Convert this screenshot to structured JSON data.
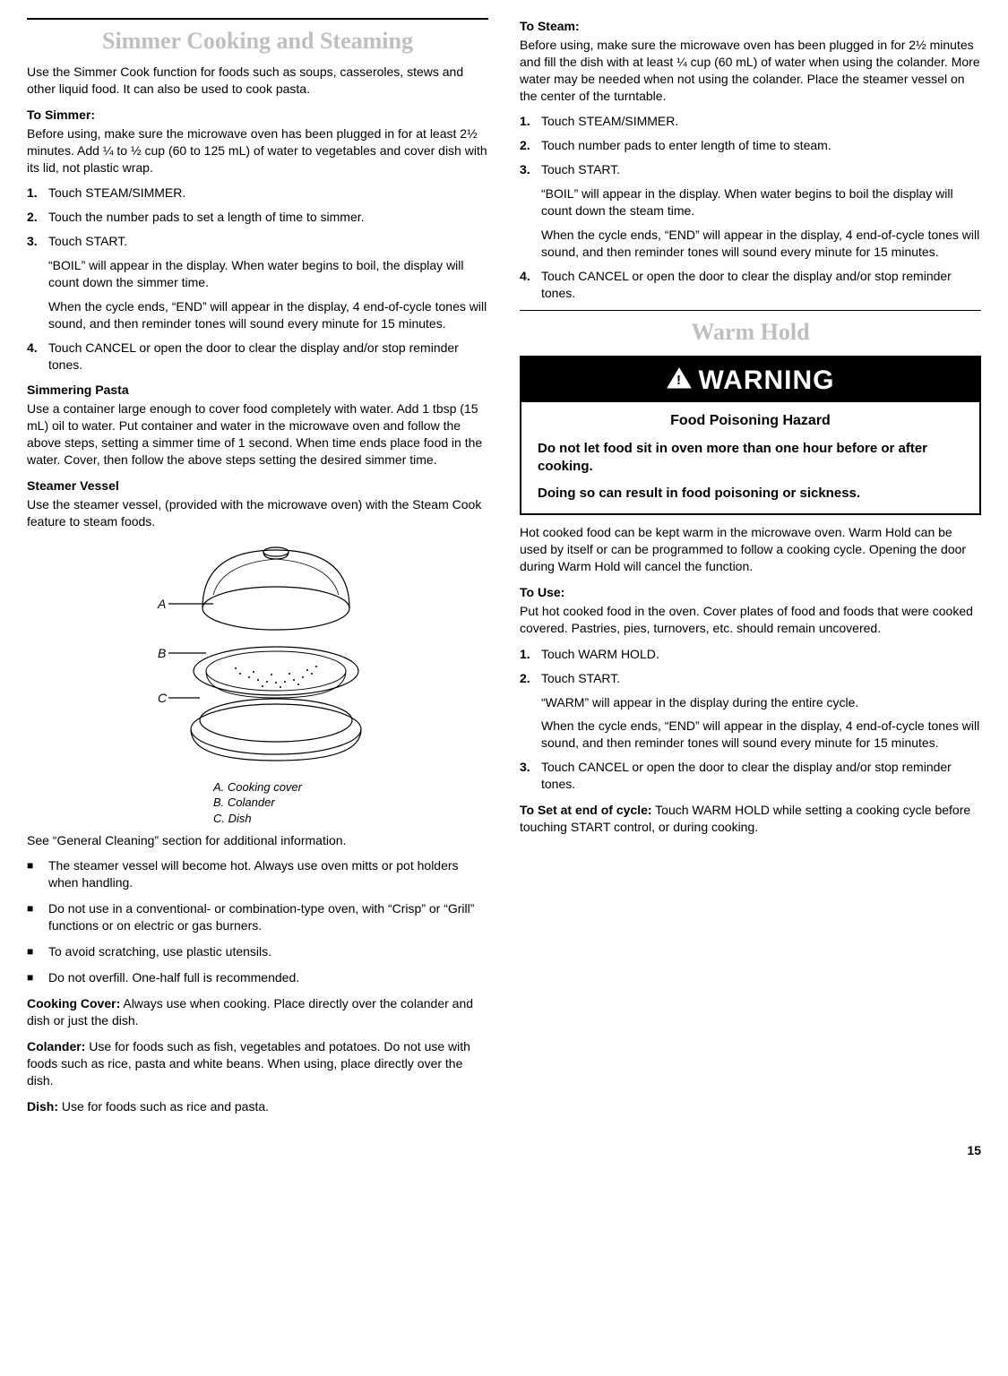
{
  "left": {
    "title": "Simmer Cooking and Steaming",
    "intro": "Use the Simmer Cook function for foods such as soups, casseroles, stews and other liquid food. It can also be used to cook pasta.",
    "toSimmer": {
      "head": "To Simmer:",
      "pre": "Before using, make sure the microwave oven has been plugged in for at least 2½ minutes. Add ¼ to ½ cup (60 to 125 mL) of water to vegetables and cover dish with its lid, not plastic wrap.",
      "steps": [
        {
          "n": "1.",
          "paras": [
            "Touch STEAM/SIMMER."
          ]
        },
        {
          "n": "2.",
          "paras": [
            "Touch the number pads to set a length of time to simmer."
          ]
        },
        {
          "n": "3.",
          "paras": [
            "Touch START.",
            "“BOIL” will appear in the display. When water begins to boil, the display will count down the simmer time.",
            "When the cycle ends, “END” will appear in the display, 4 end-of-cycle tones will sound, and then reminder tones will sound every minute for 15 minutes."
          ]
        },
        {
          "n": "4.",
          "paras": [
            "Touch CANCEL or open the door to clear the display and/or stop reminder tones."
          ]
        }
      ]
    },
    "pasta": {
      "head": "Simmering Pasta",
      "body": "Use a container large enough to cover food completely with water. Add 1 tbsp (15 mL) oil to water. Put container and water in the microwave oven and follow the above steps, setting a simmer time of 1 second. When time ends place food in the water. Cover, then follow the above steps setting the desired simmer time."
    },
    "vessel": {
      "head": "Steamer Vessel",
      "intro": "Use the steamer vessel, (provided with the microwave oven) with the Steam Cook feature to steam foods.",
      "labels": {
        "a": "A",
        "b": "B",
        "c": "C"
      },
      "legend": [
        "A. Cooking cover",
        "B. Colander",
        "C. Dish"
      ],
      "after": "See “General Cleaning” section for additional information.",
      "bullets": [
        "The steamer vessel will become hot. Always use oven mitts or pot holders when handling.",
        "Do not use in a conventional- or combination-type oven, with “Crisp” or “Grill” functions or on electric or gas burners.",
        "To avoid scratching, use plastic utensils.",
        "Do not overfill. One-half full is recommended."
      ],
      "cover": {
        "label": "Cooking Cover:",
        "text": " Always use when cooking. Place directly over the colander and dish or just the dish."
      },
      "colander": {
        "label": "Colander:",
        "text": " Use for foods such as fish, vegetables and potatoes. Do not use with foods such as rice, pasta and white beans. When using, place directly over the dish."
      },
      "dish": {
        "label": "Dish:",
        "text": " Use for foods such as rice and pasta."
      }
    }
  },
  "right": {
    "toSteam": {
      "head": "To Steam:",
      "pre": "Before using, make sure the microwave oven has been plugged in for 2½ minutes and fill the dish with at least ¼ cup (60 mL) of water when using the colander. More water may be needed when not using the colander. Place the steamer vessel on the center of the turntable.",
      "steps": [
        {
          "n": "1.",
          "paras": [
            "Touch STEAM/SIMMER."
          ]
        },
        {
          "n": "2.",
          "paras": [
            "Touch number pads to enter length of time to steam."
          ]
        },
        {
          "n": "3.",
          "paras": [
            "Touch START.",
            "“BOIL” will appear in the display. When water begins to boil the display will count down the steam time.",
            "When the cycle ends, “END” will appear in the display, 4 end-of-cycle tones will sound, and then reminder tones will sound every minute for 15 minutes."
          ]
        },
        {
          "n": "4.",
          "paras": [
            "Touch CANCEL or open the door to clear the display and/or stop reminder tones."
          ]
        }
      ]
    },
    "warmHold": {
      "title": "Warm Hold",
      "warning": {
        "header": "WARNING",
        "hazard": "Food Poisoning Hazard",
        "lines": [
          "Do not let food sit in oven more than one hour before or after cooking.",
          "Doing so can result in food poisoning or sickness."
        ]
      },
      "intro": "Hot cooked food can be kept warm in the microwave oven. Warm Hold can be used by itself or can be programmed to follow a cooking cycle. Opening the door during Warm Hold will cancel the function.",
      "toUse": {
        "head": "To Use:",
        "pre": "Put hot cooked food in the oven. Cover plates of food and foods that were cooked covered. Pastries, pies, turnovers, etc. should remain uncovered.",
        "steps": [
          {
            "n": "1.",
            "paras": [
              "Touch WARM HOLD."
            ]
          },
          {
            "n": "2.",
            "paras": [
              "Touch START.",
              "“WARM” will appear in the display during the entire cycle.",
              "When the cycle ends, “END” will appear in the display, 4 end-of-cycle tones will sound, and then reminder tones will sound every minute for 15 minutes."
            ]
          },
          {
            "n": "3.",
            "paras": [
              "Touch CANCEL or open the door to clear the display and/or stop reminder tones."
            ]
          }
        ]
      },
      "toSet": {
        "label": "To Set at end of cycle:",
        "text": " Touch WARM HOLD while setting a cooking cycle before touching START control, or during cooking."
      }
    }
  },
  "pageNumber": "15"
}
